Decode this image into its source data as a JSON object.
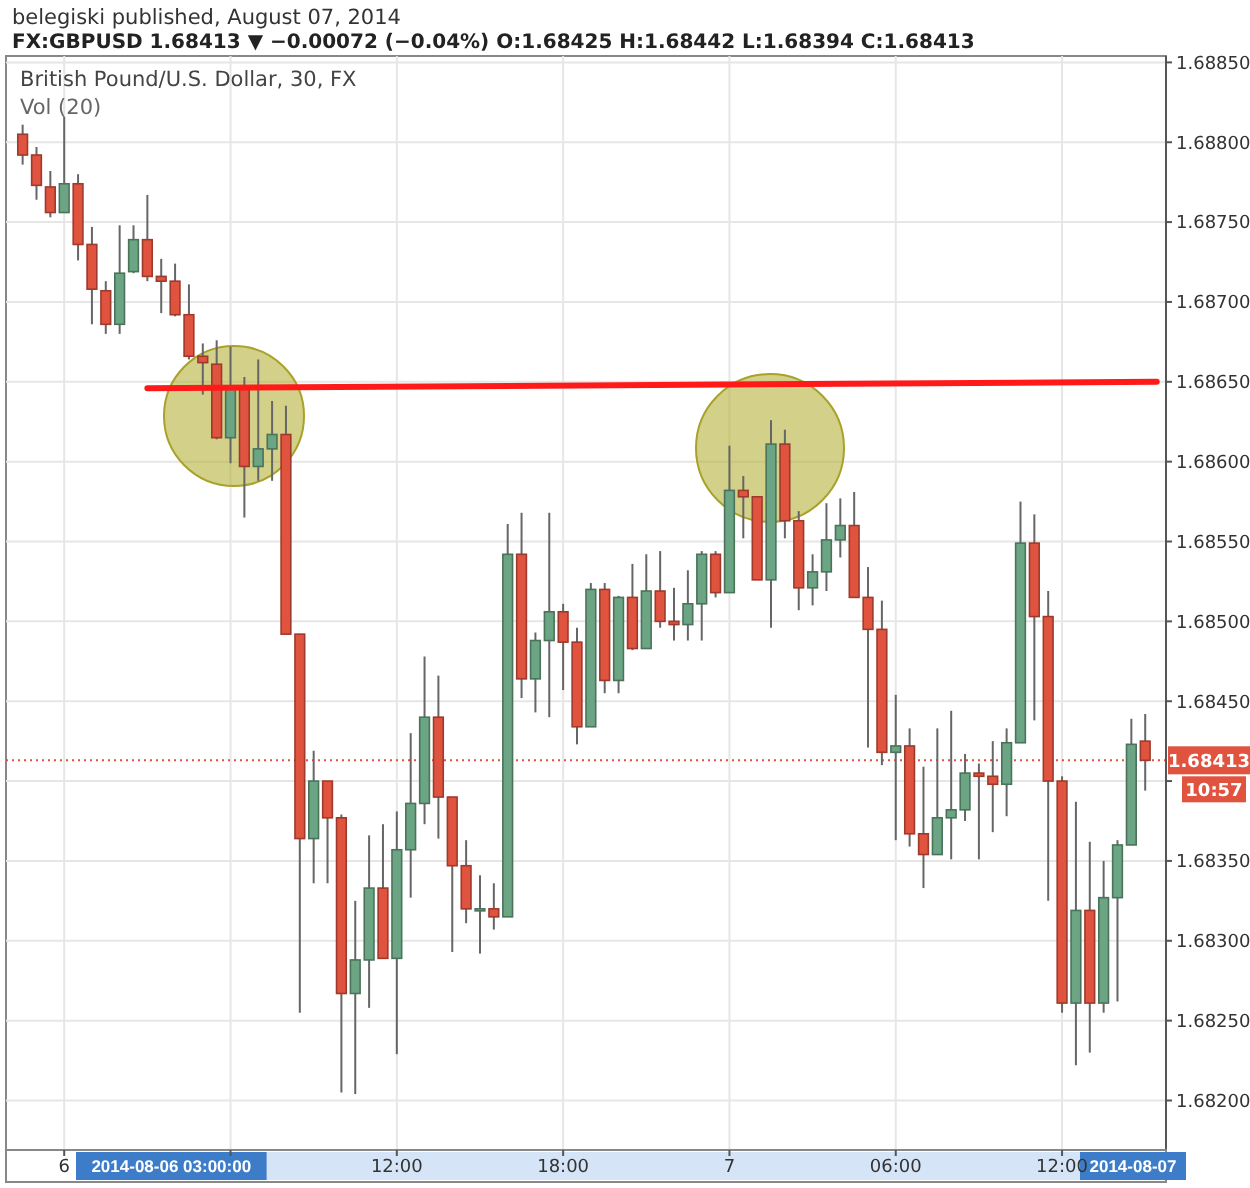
{
  "chart_data": {
    "type": "candlestick",
    "title": "British Pound/U.S. Dollar, 30, FX",
    "subtitle": "FX:GBPUSD 1.68413 ▼ −0.00072 (−0.04%) O:1.68425 H:1.68442 L:1.68394 C:1.68413",
    "x": [
      "2014-08-05T22:30",
      "2014-08-05T23:00",
      "2014-08-05T23:30",
      "2014-08-06T00:00",
      "2014-08-06T00:30",
      "2014-08-06T01:00",
      "2014-08-06T01:30",
      "2014-08-06T02:00",
      "2014-08-06T02:30",
      "2014-08-06T03:00",
      "2014-08-06T03:30",
      "2014-08-06T04:00",
      "2014-08-06T04:30",
      "2014-08-06T05:00",
      "2014-08-06T05:30",
      "2014-08-06T06:00",
      "2014-08-06T06:30",
      "2014-08-06T07:00",
      "2014-08-06T07:30",
      "2014-08-06T08:00",
      "2014-08-06T08:30",
      "2014-08-06T09:00",
      "2014-08-06T09:30",
      "2014-08-06T10:00",
      "2014-08-06T10:30",
      "2014-08-06T11:00",
      "2014-08-06T11:30",
      "2014-08-06T12:00",
      "2014-08-06T12:30",
      "2014-08-06T13:00",
      "2014-08-06T13:30",
      "2014-08-06T14:00",
      "2014-08-06T14:30",
      "2014-08-06T15:00",
      "2014-08-06T15:30",
      "2014-08-06T16:00",
      "2014-08-06T16:30",
      "2014-08-06T17:00",
      "2014-08-06T17:30",
      "2014-08-06T18:00",
      "2014-08-06T18:30",
      "2014-08-06T19:00",
      "2014-08-06T19:30",
      "2014-08-06T20:00",
      "2014-08-06T20:30",
      "2014-08-06T21:00",
      "2014-08-06T21:30",
      "2014-08-06T22:00",
      "2014-08-06T22:30",
      "2014-08-06T23:00",
      "2014-08-06T23:30",
      "2014-08-07T00:00",
      "2014-08-07T00:30",
      "2014-08-07T01:00",
      "2014-08-07T01:30",
      "2014-08-07T02:00",
      "2014-08-07T02:30",
      "2014-08-07T03:00",
      "2014-08-07T03:30",
      "2014-08-07T04:00",
      "2014-08-07T04:30",
      "2014-08-07T05:00",
      "2014-08-07T05:30",
      "2014-08-07T06:00",
      "2014-08-07T06:30",
      "2014-08-07T07:00",
      "2014-08-07T07:30",
      "2014-08-07T08:00",
      "2014-08-07T08:30",
      "2014-08-07T09:00",
      "2014-08-07T09:30",
      "2014-08-07T10:00",
      "2014-08-07T10:30",
      "2014-08-07T11:00",
      "2014-08-07T11:30",
      "2014-08-07T12:00",
      "2014-08-07T12:30",
      "2014-08-07T13:00",
      "2014-08-07T13:30",
      "2014-08-07T14:00",
      "2014-08-07T14:30",
      "2014-08-07T15:00"
    ],
    "ohlc": [
      [
        1.68805,
        1.68811,
        1.68786,
        1.68792
      ],
      [
        1.68792,
        1.68797,
        1.68764,
        1.68773
      ],
      [
        1.68772,
        1.68782,
        1.68753,
        1.68756
      ],
      [
        1.68756,
        1.68816,
        1.68756,
        1.68774
      ],
      [
        1.68774,
        1.6878,
        1.68726,
        1.68736
      ],
      [
        1.68736,
        1.68747,
        1.68686,
        1.68708
      ],
      [
        1.68707,
        1.68713,
        1.6868,
        1.68686
      ],
      [
        1.68686,
        1.68748,
        1.6868,
        1.68718
      ],
      [
        1.68719,
        1.68748,
        1.68718,
        1.68739
      ],
      [
        1.68739,
        1.68767,
        1.68713,
        1.68716
      ],
      [
        1.68716,
        1.68727,
        1.68693,
        1.68713
      ],
      [
        1.68713,
        1.68724,
        1.68691,
        1.68692
      ],
      [
        1.68692,
        1.68711,
        1.68664,
        1.68666
      ],
      [
        1.68666,
        1.68674,
        1.68642,
        1.68662
      ],
      [
        1.68661,
        1.68676,
        1.68614,
        1.68615
      ],
      [
        1.68615,
        1.68672,
        1.68599,
        1.68647
      ],
      [
        1.68647,
        1.68653,
        1.68565,
        1.68597
      ],
      [
        1.68597,
        1.68664,
        1.68588,
        1.68608
      ],
      [
        1.68608,
        1.68638,
        1.68588,
        1.68617
      ],
      [
        1.68617,
        1.68635,
        1.68492,
        1.68492
      ],
      [
        1.68492,
        1.68492,
        1.68255,
        1.68364
      ],
      [
        1.68364,
        1.68419,
        1.68336,
        1.684
      ],
      [
        1.684,
        1.684,
        1.68336,
        1.68377
      ],
      [
        1.68377,
        1.68379,
        1.68205,
        1.68267
      ],
      [
        1.68267,
        1.68325,
        1.68204,
        1.68288
      ],
      [
        1.68288,
        1.68366,
        1.68258,
        1.68333
      ],
      [
        1.68333,
        1.68373,
        1.68289,
        1.68289
      ],
      [
        1.68289,
        1.68381,
        1.68229,
        1.68357
      ],
      [
        1.68357,
        1.6843,
        1.68327,
        1.68386
      ],
      [
        1.68386,
        1.68478,
        1.68373,
        1.6844
      ],
      [
        1.6844,
        1.68466,
        1.68364,
        1.6839
      ],
      [
        1.6839,
        1.6839,
        1.68293,
        1.68347
      ],
      [
        1.68347,
        1.68363,
        1.68311,
        1.6832
      ],
      [
        1.68319,
        1.68341,
        1.68292,
        1.6832
      ],
      [
        1.6832,
        1.68336,
        1.68307,
        1.68315
      ],
      [
        1.68315,
        1.68561,
        1.68315,
        1.68542
      ],
      [
        1.68542,
        1.68568,
        1.68452,
        1.68464
      ],
      [
        1.68464,
        1.68493,
        1.68443,
        1.68488
      ],
      [
        1.68488,
        1.68568,
        1.6844,
        1.68506
      ],
      [
        1.68506,
        1.68511,
        1.68457,
        1.68487
      ],
      [
        1.68487,
        1.68496,
        1.68423,
        1.68434
      ],
      [
        1.68434,
        1.68524,
        1.68434,
        1.6852
      ],
      [
        1.6852,
        1.68524,
        1.68455,
        1.68463
      ],
      [
        1.68463,
        1.68516,
        1.68455,
        1.68515
      ],
      [
        1.68515,
        1.68536,
        1.68482,
        1.68483
      ],
      [
        1.68483,
        1.68542,
        1.68483,
        1.68519
      ],
      [
        1.68519,
        1.68544,
        1.68496,
        1.685
      ],
      [
        1.685,
        1.68521,
        1.68488,
        1.68498
      ],
      [
        1.68498,
        1.68532,
        1.68488,
        1.68511
      ],
      [
        1.68511,
        1.68544,
        1.68488,
        1.68542
      ],
      [
        1.68542,
        1.68544,
        1.68515,
        1.68518
      ],
      [
        1.68518,
        1.6861,
        1.68518,
        1.68582
      ],
      [
        1.68582,
        1.68591,
        1.68552,
        1.68578
      ],
      [
        1.68578,
        1.68578,
        1.68526,
        1.68526
      ],
      [
        1.68526,
        1.68626,
        1.68496,
        1.68611
      ],
      [
        1.68611,
        1.6862,
        1.68552,
        1.68563
      ],
      [
        1.68563,
        1.68569,
        1.68507,
        1.68521
      ],
      [
        1.68521,
        1.68542,
        1.6851,
        1.68531
      ],
      [
        1.68531,
        1.68574,
        1.68519,
        1.68551
      ],
      [
        1.68551,
        1.68577,
        1.6854,
        1.6856
      ],
      [
        1.6856,
        1.68581,
        1.68515,
        1.68515
      ],
      [
        1.68515,
        1.68534,
        1.68421,
        1.68495
      ],
      [
        1.68495,
        1.68513,
        1.6841,
        1.68418
      ],
      [
        1.68418,
        1.68454,
        1.68363,
        1.68422
      ],
      [
        1.68422,
        1.68433,
        1.68359,
        1.68367
      ],
      [
        1.68367,
        1.68409,
        1.68333,
        1.68354
      ],
      [
        1.68354,
        1.68433,
        1.68354,
        1.68377
      ],
      [
        1.68377,
        1.68444,
        1.68351,
        1.68382
      ],
      [
        1.68382,
        1.68417,
        1.68375,
        1.68405
      ],
      [
        1.68405,
        1.68411,
        1.68351,
        1.68403
      ],
      [
        1.68403,
        1.68425,
        1.68368,
        1.68398
      ],
      [
        1.68398,
        1.68433,
        1.68378,
        1.68424
      ],
      [
        1.68424,
        1.68575,
        1.68424,
        1.68549
      ],
      [
        1.68549,
        1.68567,
        1.68438,
        1.68503
      ],
      [
        1.68503,
        1.68519,
        1.68325,
        1.684
      ],
      [
        1.684,
        1.68403,
        1.68255,
        1.68261
      ],
      [
        1.68261,
        1.68387,
        1.68222,
        1.68319
      ],
      [
        1.68319,
        1.68362,
        1.6823,
        1.68261
      ],
      [
        1.68261,
        1.6835,
        1.68255,
        1.68327
      ],
      [
        1.68327,
        1.68363,
        1.68262,
        1.6836
      ],
      [
        1.6836,
        1.68439,
        1.6836,
        1.68423
      ],
      [
        1.68425,
        1.68442,
        1.68394,
        1.68413
      ]
    ],
    "colors": [
      "#e0533f",
      "#e0533f",
      "#e0533f",
      "#6ba583",
      "#e0533f",
      "#e0533f",
      "#e0533f",
      "#6ba583",
      "#6ba583",
      "#e0533f",
      "#e0533f",
      "#e0533f",
      "#e0533f",
      "#e0533f",
      "#e0533f",
      "#6ba583",
      "#e0533f",
      "#6ba583",
      "#6ba583",
      "#e0533f",
      "#e0533f",
      "#6ba583",
      "#e0533f",
      "#e0533f",
      "#6ba583",
      "#6ba583",
      "#e0533f",
      "#6ba583",
      "#6ba583",
      "#6ba583",
      "#e0533f",
      "#e0533f",
      "#e0533f",
      "#6ba583",
      "#e0533f",
      "#6ba583",
      "#e0533f",
      "#6ba583",
      "#6ba583",
      "#e0533f",
      "#e0533f",
      "#6ba583",
      "#e0533f",
      "#6ba583",
      "#e0533f",
      "#6ba583",
      "#e0533f",
      "#e0533f",
      "#6ba583",
      "#6ba583",
      "#e0533f",
      "#6ba583",
      "#e0533f",
      "#e0533f",
      "#6ba583",
      "#e0533f",
      "#e0533f",
      "#6ba583",
      "#6ba583",
      "#6ba583",
      "#e0533f",
      "#e0533f",
      "#e0533f",
      "#6ba583",
      "#e0533f",
      "#e0533f",
      "#6ba583",
      "#6ba583",
      "#6ba583",
      "#e0533f",
      "#e0533f",
      "#6ba583",
      "#6ba583",
      "#e0533f",
      "#e0533f",
      "#e0533f",
      "#6ba583",
      "#e0533f",
      "#6ba583",
      "#6ba583",
      "#6ba583",
      "#e0533f"
    ],
    "series": [
      {
        "type": "line",
        "x": [
          "2014-08-06T03:00",
          "2014-08-07T15:25"
        ],
        "values": [
          1.68646,
          1.6865
        ],
        "color": "#ff1a1a"
      }
    ],
    "xlim": [
      "2014-08-05T21:54",
      "2014-08-07T15:45"
    ],
    "xticks": [
      {
        "value": "2014-08-06T00:00",
        "label": "6"
      },
      {
        "value": "2014-08-06T06:00",
        "label": null
      },
      {
        "value": "2014-08-06T12:00",
        "label": "12:00"
      },
      {
        "value": "2014-08-06T18:00",
        "label": "18:00"
      },
      {
        "value": "2014-08-07T00:00",
        "label": "7"
      },
      {
        "value": "2014-08-07T06:00",
        "label": "06:00"
      },
      {
        "value": "2014-08-07T12:00",
        "label": "12:00"
      }
    ],
    "ylim": [
      1.68169,
      1.68854
    ],
    "yticks": [
      {
        "value": 1.682,
        "label": "1.68200"
      },
      {
        "value": 1.6825,
        "label": "1.68250"
      },
      {
        "value": 1.683,
        "label": "1.68300"
      },
      {
        "value": 1.6835,
        "label": "1.68350"
      },
      {
        "value": 1.684,
        "label": null
      },
      {
        "value": 1.6845,
        "label": "1.68450"
      },
      {
        "value": 1.685,
        "label": "1.68500"
      },
      {
        "value": 1.6855,
        "label": "1.68550"
      },
      {
        "value": 1.686,
        "label": "1.68600"
      },
      {
        "value": 1.6865,
        "label": "1.68650"
      },
      {
        "value": 1.687,
        "label": "1.68700"
      },
      {
        "value": 1.6875,
        "label": "1.68750"
      },
      {
        "value": 1.688,
        "label": "1.68800"
      },
      {
        "value": 1.6885,
        "label": "1.68850"
      }
    ],
    "ref_lines": [
      {
        "axis": "y",
        "value": 1.68413,
        "label": "1.68413",
        "color": "#e0533f",
        "line_style": "dotted"
      }
    ],
    "annotations": [
      "belegiski published, August 07, 2014",
      "Vol (20)",
      "10:57",
      "2014-08-06 03:00:00",
      "2014-08-07"
    ],
    "grid": true
  }
}
